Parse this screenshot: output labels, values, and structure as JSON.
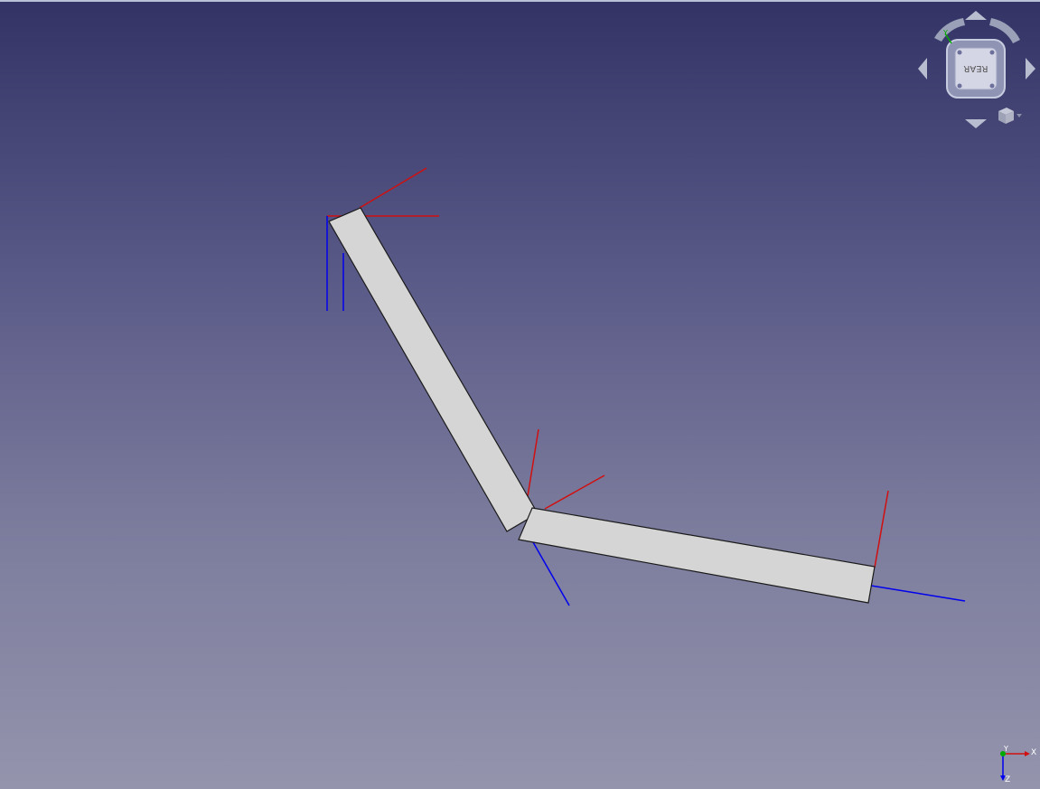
{
  "viewport": {
    "background_top": "#333366",
    "background_bottom": "#9494ad"
  },
  "navigation_cube": {
    "face_label": "REAR",
    "mini_axis_label": "Y"
  },
  "axis_indicator": {
    "x_label": "X",
    "y_label": "Y",
    "z_label": "Z"
  },
  "colors": {
    "x_axis": "#d01010",
    "z_axis": "#0000ee",
    "y_axis": "#00aa00",
    "body_fill": "#d5d5d5",
    "body_edge": "#1a1a1a"
  }
}
